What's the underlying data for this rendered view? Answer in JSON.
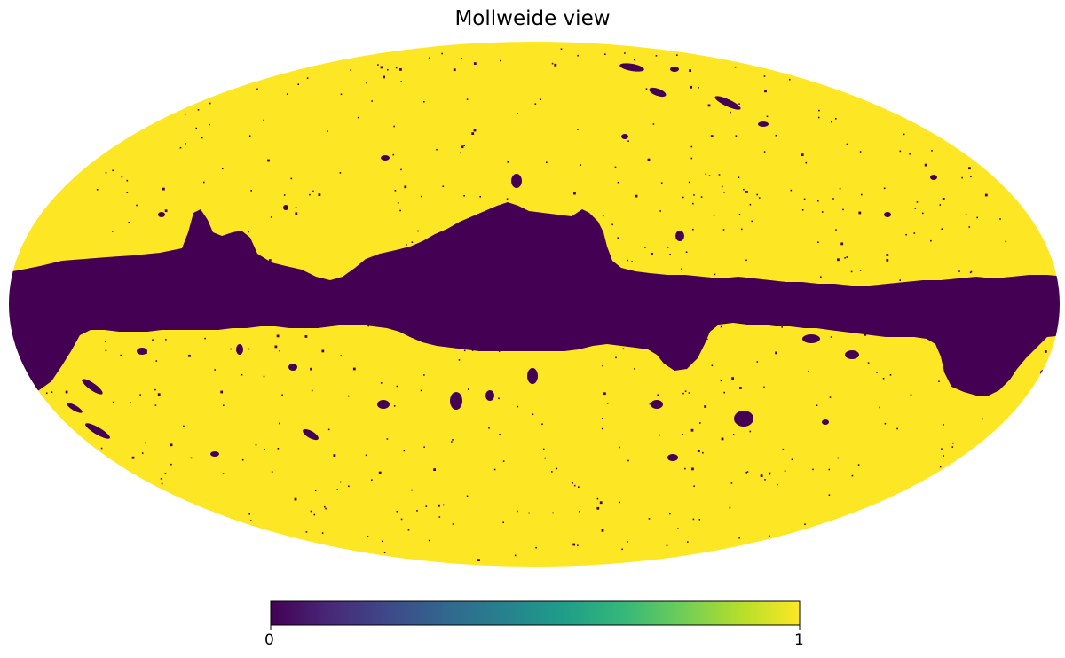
{
  "title": "Mollweide view",
  "projection": "Mollweide",
  "mask": {
    "colormap": "viridis",
    "masked_value": 0,
    "unmasked_value": 1,
    "masked_color": "#440154",
    "unmasked_color": "#fde725"
  },
  "colorbar": {
    "min_label": "0",
    "max_label": "1",
    "colormap_stops": [
      "#440154",
      "#482878",
      "#3e4989",
      "#31688e",
      "#26828e",
      "#1f9e89",
      "#35b779",
      "#6ece58",
      "#b5de2b",
      "#fde725"
    ]
  }
}
